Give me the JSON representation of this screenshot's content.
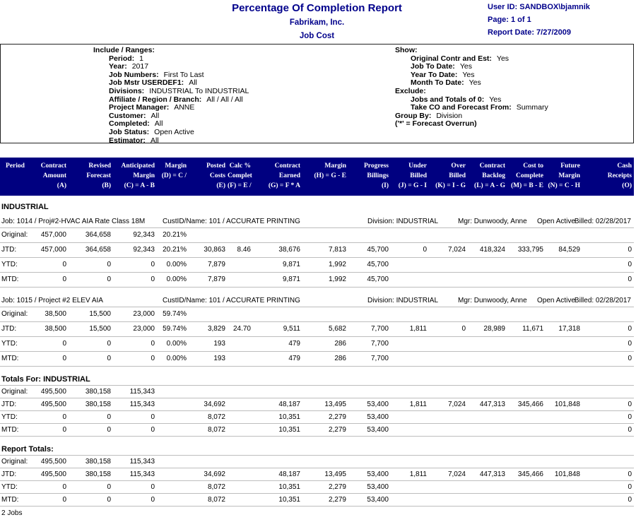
{
  "colors": {
    "navy_band": "#000080",
    "navy_text": "#00008B",
    "hairline": "#bdbdbd"
  },
  "page": {
    "title": "Percentage Of Completion Report",
    "company": "Fabrikam, Inc.",
    "module": "Job Cost",
    "meta_lines": [
      "User ID: SANDBOX\\bjamnik",
      "Page: 1 of 1",
      "Report Date: 7/27/2009"
    ]
  },
  "parameters": {
    "include_title": "Include / Ranges:",
    "include_items": [
      {
        "label": "Period:",
        "value": "1"
      },
      {
        "label": "Year:",
        "value": "2017"
      },
      {
        "label": "Job Numbers:",
        "value": "First To Last"
      },
      {
        "label": "Job Mstr USERDEF1:",
        "value": "All"
      },
      {
        "label": "Divisions:",
        "value": "INDUSTRIAL To INDUSTRIAL"
      },
      {
        "label": "Affiliate / Region / Branch:",
        "value": "All / All / All"
      },
      {
        "label": "Project Manager:",
        "value": "ANNE"
      },
      {
        "label": "Customer:",
        "value": "All"
      },
      {
        "label": "Completed:",
        "value": "All"
      },
      {
        "label": "Job Status:",
        "value": "Open Active"
      },
      {
        "label": "Estimator:",
        "value": "All"
      }
    ],
    "show_title": "Show:",
    "show_items": [
      {
        "label": "Original Contr and Est:",
        "value": "Yes"
      },
      {
        "label": "Job To Date:",
        "value": "Yes"
      },
      {
        "label": "Year To Date:",
        "value": "Yes"
      },
      {
        "label": "Month To Date:",
        "value": "Yes"
      }
    ],
    "exclude_title": "Exclude:",
    "exclude_items": [
      {
        "label": "Jobs and Totals of 0:",
        "value": "Yes"
      },
      {
        "label": "Take CO and Forecast From:",
        "value": "Summary"
      }
    ],
    "group_by": {
      "label": "Group By:",
      "value": "Division"
    },
    "note": "('*' = Forecast Overrun)"
  },
  "table": {
    "columns": [
      {
        "lines": [
          "Period",
          "",
          ""
        ]
      },
      {
        "lines": [
          "Contract",
          "Amount",
          "(A)"
        ]
      },
      {
        "lines": [
          "Revised",
          "Forecast",
          "(B)"
        ]
      },
      {
        "lines": [
          "Anticipated",
          "Margin",
          "(C) = A - B"
        ]
      },
      {
        "lines": [
          "Margin",
          "(D) = C /",
          ""
        ]
      },
      {
        "lines": [
          "Posted",
          "Costs",
          "(E)"
        ]
      },
      {
        "lines": [
          "Calc %",
          "Complet",
          "(F) = E /"
        ]
      },
      {
        "lines": [
          "Contract",
          "Earned",
          "(G) = F * A"
        ]
      },
      {
        "lines": [
          "Margin",
          "(H) = G - E",
          ""
        ]
      },
      {
        "lines": [
          "Progress",
          "Billings",
          "(I)"
        ]
      },
      {
        "lines": [
          "Under",
          "Billed",
          "(J) = G - I"
        ]
      },
      {
        "lines": [
          "Over",
          "Billed",
          "(K) = I - G"
        ]
      },
      {
        "lines": [
          "Contract",
          "Backlog",
          "(L) = A - G"
        ]
      },
      {
        "lines": [
          "Cost to",
          "Complete",
          "(M) = B - E"
        ]
      },
      {
        "lines": [
          "Future",
          "Margin",
          "(N) = C - H"
        ]
      },
      {
        "lines": [
          "Cash",
          "Receipts",
          "(O)"
        ]
      }
    ],
    "sections": [
      {
        "type": "division",
        "title": "INDUSTRIAL"
      },
      {
        "type": "job",
        "meta": {
          "job": "Job: 1014 / Proj#2-HVAC AIA Rate Class 18M",
          "cust": "CustID/Name: 101 / ACCURATE PRINTING",
          "division": "Division: INDUSTRIAL",
          "mgr": "Mgr: Dunwoody, Anne",
          "status": "Open Active",
          "billed": "Billed: 02/28/2017"
        },
        "rows": [
          {
            "label": "Original:",
            "values": [
              "457,000",
              "364,658",
              "92,343",
              "20.21%",
              "",
              "",
              "",
              "",
              "",
              "",
              "",
              "",
              "",
              "",
              ""
            ]
          },
          {
            "label": "JTD:",
            "values": [
              "457,000",
              "364,658",
              "92,343",
              "20.21%",
              "30,863",
              "8.46",
              "38,676",
              "7,813",
              "45,700",
              "0",
              "7,024",
              "418,324",
              "333,795",
              "84,529",
              "0"
            ]
          },
          {
            "label": "YTD:",
            "values": [
              "0",
              "0",
              "0",
              "0.00%",
              "7,879",
              "",
              "9,871",
              "1,992",
              "45,700",
              "",
              "",
              "",
              "",
              "",
              "0"
            ]
          },
          {
            "label": "MTD:",
            "values": [
              "0",
              "0",
              "0",
              "0.00%",
              "7,879",
              "",
              "9,871",
              "1,992",
              "45,700",
              "",
              "",
              "",
              "",
              "",
              "0"
            ]
          }
        ]
      },
      {
        "type": "job",
        "meta": {
          "job": "Job: 1015 / Project #2 ELEV AIA",
          "cust": "CustID/Name: 101 / ACCURATE PRINTING",
          "division": "Division: INDUSTRIAL",
          "mgr": "Mgr: Dunwoody, Anne",
          "status": "Open Active",
          "billed": "Billed: 02/28/2017"
        },
        "rows": [
          {
            "label": "Original:",
            "values": [
              "38,500",
              "15,500",
              "23,000",
              "59.74%",
              "",
              "",
              "",
              "",
              "",
              "",
              "",
              "",
              "",
              "",
              ""
            ]
          },
          {
            "label": "JTD:",
            "values": [
              "38,500",
              "15,500",
              "23,000",
              "59.74%",
              "3,829",
              "24.70",
              "9,511",
              "5,682",
              "7,700",
              "1,811",
              "0",
              "28,989",
              "11,671",
              "17,318",
              "0"
            ]
          },
          {
            "label": "YTD:",
            "values": [
              "0",
              "0",
              "0",
              "0.00%",
              "193",
              "",
              "479",
              "286",
              "7,700",
              "",
              "",
              "",
              "",
              "",
              "0"
            ]
          },
          {
            "label": "MTD:",
            "values": [
              "0",
              "0",
              "0",
              "0.00%",
              "193",
              "",
              "479",
              "286",
              "7,700",
              "",
              "",
              "",
              "",
              "",
              "0"
            ]
          }
        ]
      },
      {
        "type": "totals",
        "title": "Totals For: INDUSTRIAL",
        "rows": [
          {
            "label": "Original:",
            "values": [
              "495,500",
              "380,158",
              "115,343",
              "",
              "",
              "",
              "",
              "",
              "",
              "",
              "",
              "",
              "",
              "",
              ""
            ]
          },
          {
            "label": "JTD:",
            "values": [
              "495,500",
              "380,158",
              "115,343",
              "",
              "34,692",
              "",
              "48,187",
              "13,495",
              "53,400",
              "1,811",
              "7,024",
              "447,313",
              "345,466",
              "101,848",
              "0"
            ]
          },
          {
            "label": "YTD:",
            "values": [
              "0",
              "0",
              "0",
              "",
              "8,072",
              "",
              "10,351",
              "2,279",
              "53,400",
              "",
              "",
              "",
              "",
              "",
              "0"
            ]
          },
          {
            "label": "MTD:",
            "values": [
              "0",
              "0",
              "0",
              "",
              "8,072",
              "",
              "10,351",
              "2,279",
              "53,400",
              "",
              "",
              "",
              "",
              "",
              "0"
            ]
          }
        ]
      },
      {
        "type": "totals",
        "title": "Report Totals:",
        "rows": [
          {
            "label": "Original:",
            "values": [
              "495,500",
              "380,158",
              "115,343",
              "",
              "",
              "",
              "",
              "",
              "",
              "",
              "",
              "",
              "",
              "",
              ""
            ]
          },
          {
            "label": "JTD:",
            "values": [
              "495,500",
              "380,158",
              "115,343",
              "",
              "34,692",
              "",
              "48,187",
              "13,495",
              "53,400",
              "1,811",
              "7,024",
              "447,313",
              "345,466",
              "101,848",
              "0"
            ]
          },
          {
            "label": "YTD:",
            "values": [
              "0",
              "0",
              "0",
              "",
              "8,072",
              "",
              "10,351",
              "2,279",
              "53,400",
              "",
              "",
              "",
              "",
              "",
              "0"
            ]
          },
          {
            "label": "MTD:",
            "values": [
              "0",
              "0",
              "0",
              "",
              "8,072",
              "",
              "10,351",
              "2,279",
              "53,400",
              "",
              "",
              "",
              "",
              "",
              "0"
            ]
          }
        ]
      }
    ]
  },
  "footer": {
    "jobs_count": "2 Jobs"
  }
}
